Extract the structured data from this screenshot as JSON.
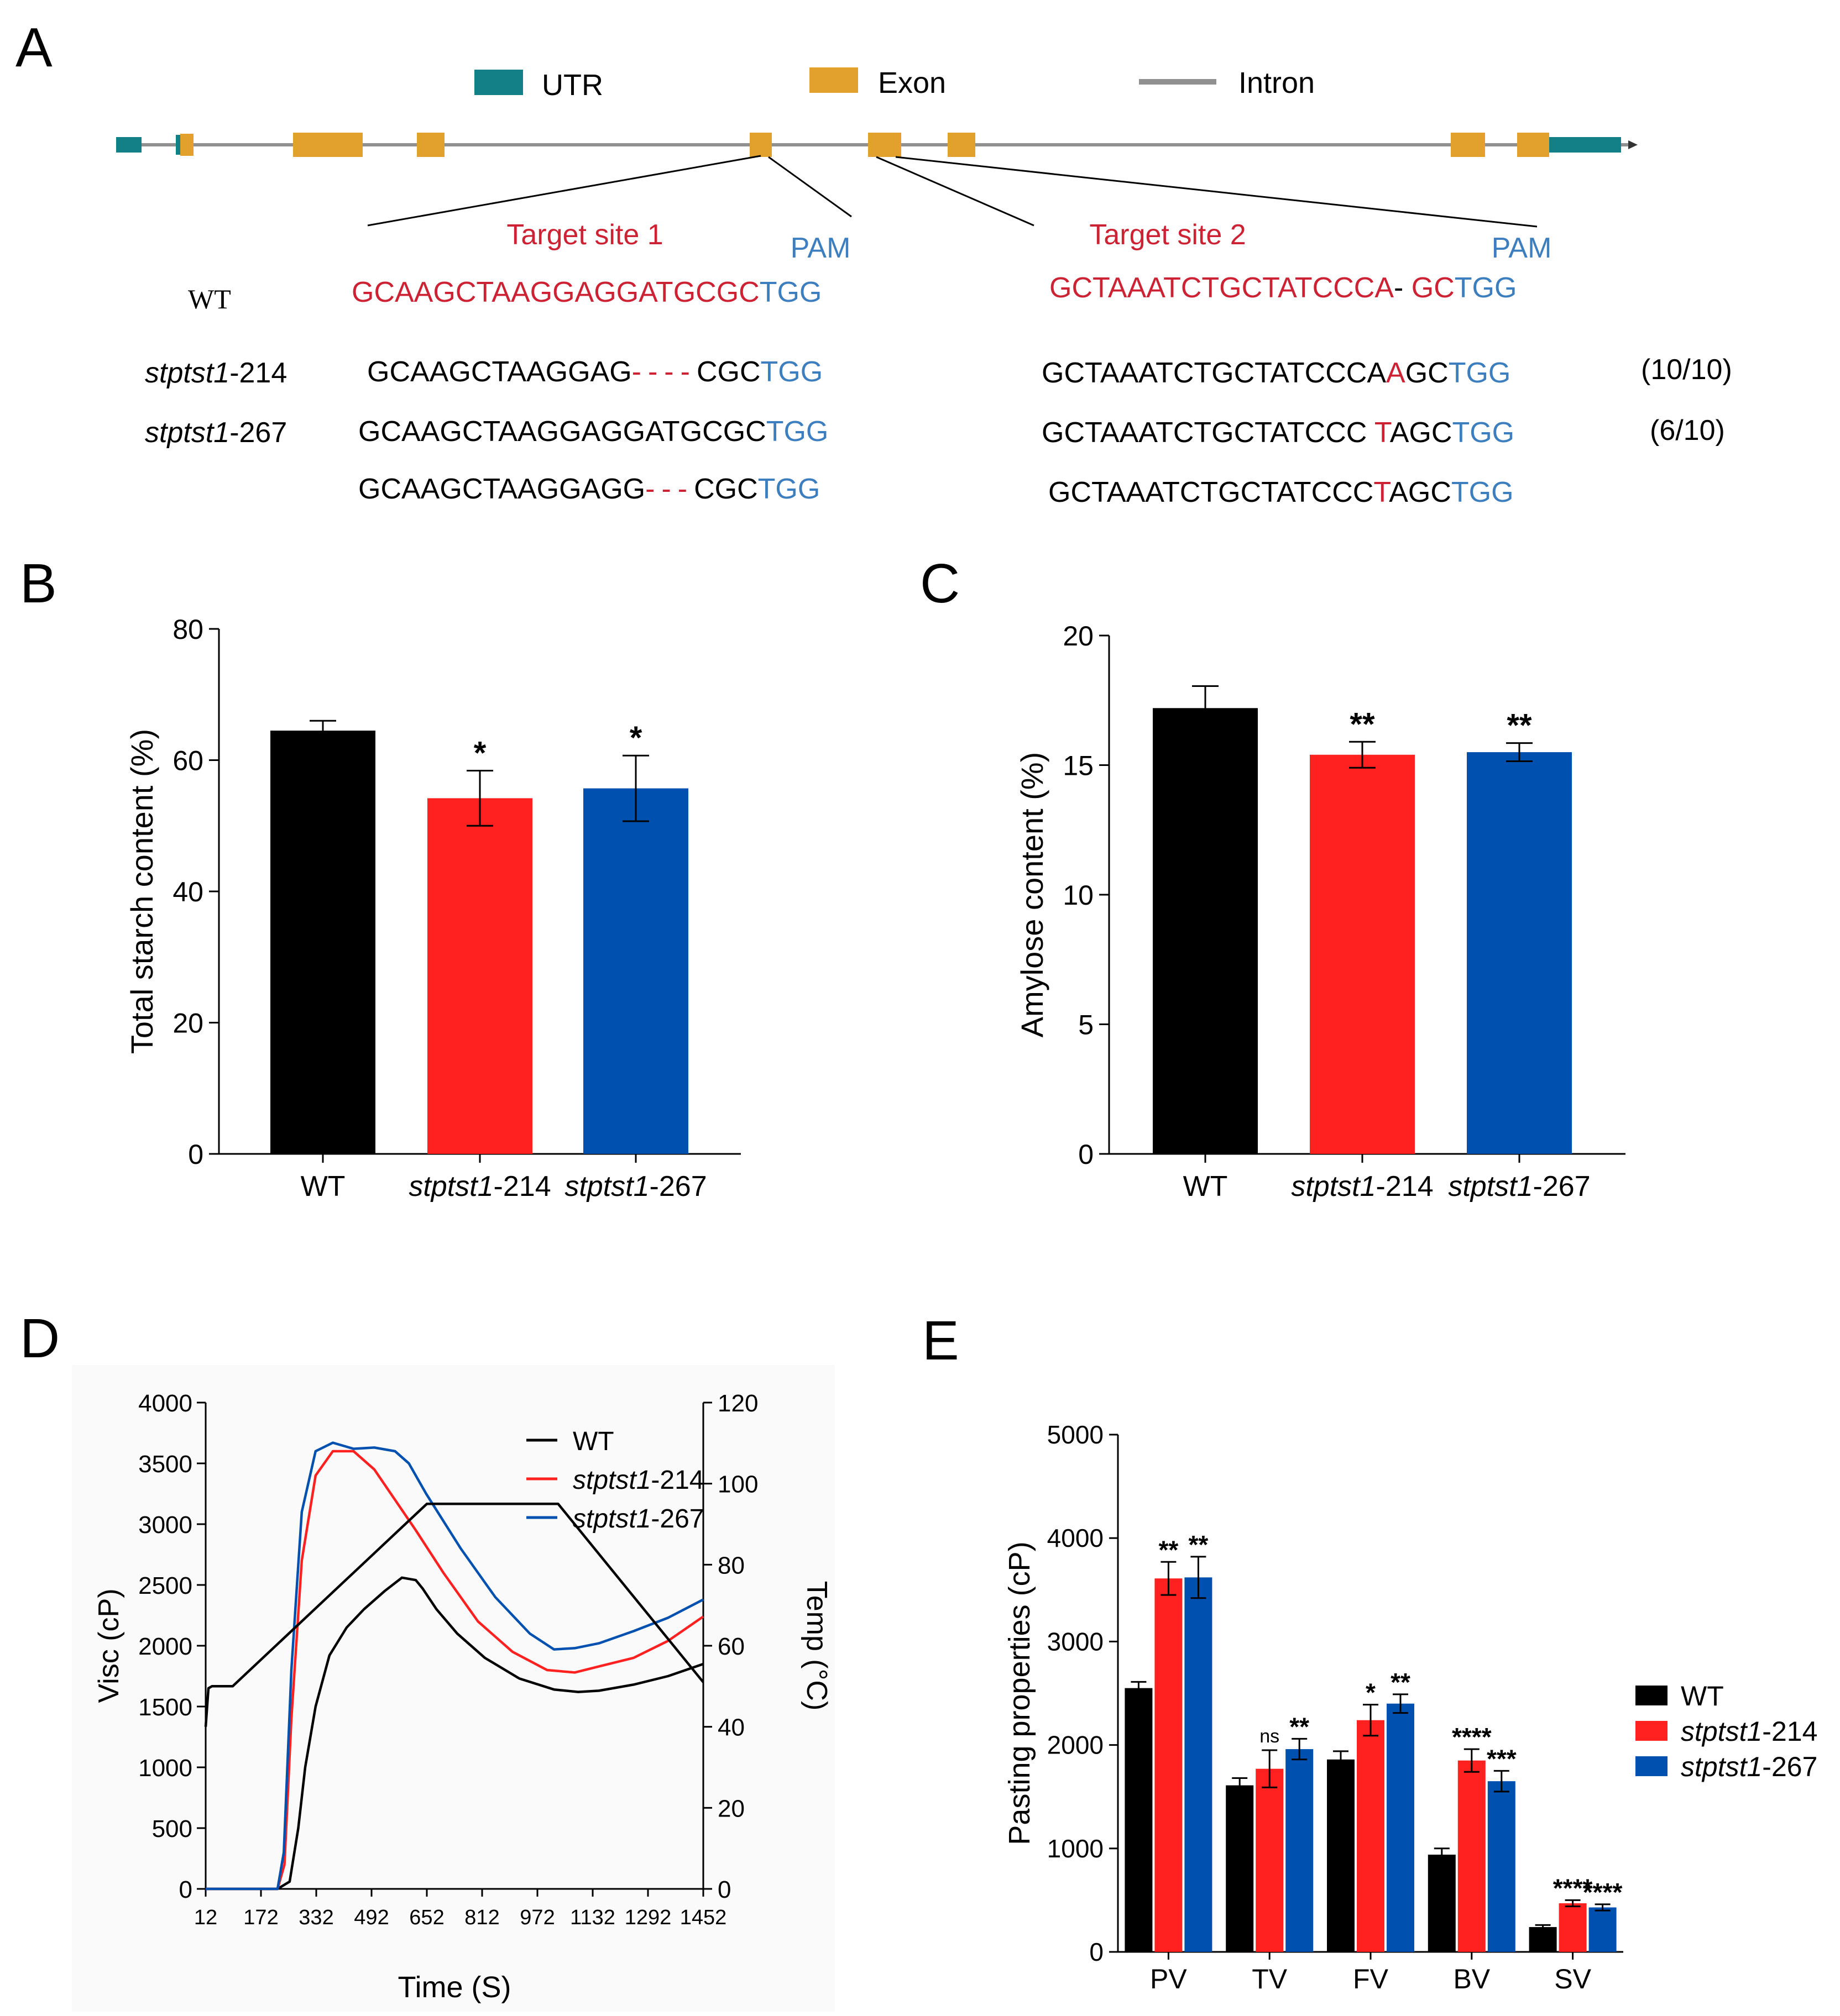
{
  "panels": {
    "A": "A",
    "B": "B",
    "C": "C",
    "D": "D",
    "E": "E"
  },
  "colors": {
    "wt": "#000000",
    "m214": "#ff2020",
    "m267": "#0050b0",
    "utr": "#137f86",
    "exon": "#e2a12d",
    "intron": "#909090",
    "target": "#cc2233",
    "pam": "#3d7ebf"
  },
  "gene_model": {
    "legend": {
      "utr": "UTR",
      "exon": "Exon",
      "intron": "Intron"
    },
    "target1_label": "Target site 1",
    "target2_label": "Target site 2",
    "pam_label": "PAM",
    "wt_label": "WT",
    "line_214": {
      "italic": "stptst1",
      "suffix": "-214"
    },
    "line_267": {
      "italic": "stptst1",
      "suffix": "-267"
    },
    "wt_seq1": {
      "target": "GCAAGCTAAGGAGGATGCGC",
      "pam": "TGG"
    },
    "wt_seq2": {
      "target": "GCTAAATCTGCTATCCCA",
      "gap": "- ",
      "mid": "GC",
      "pam": "TGG"
    },
    "m214_seq1": {
      "pre": "GCAAGCTAAGGAG",
      "del": "----",
      "post": "CGC",
      "pam": "TGG"
    },
    "m214_seq2": {
      "pre": "GCTAAATCTGCTATCCCA",
      "ins": "A",
      "post": "GC",
      "pam": "TGG"
    },
    "m214_ratio": "(10/10)",
    "m267a_seq1": {
      "pre": "GCAAGCTAAGGAGGATG",
      "post": "CGC",
      "pam": "TGG"
    },
    "m267a_seq2": {
      "pre": "GCTAAATCTGCTATCCC ",
      "ins": "T",
      "post": "AGC",
      "pam": "TGG"
    },
    "m267_ratio": "(6/10)",
    "m267b_seq1": {
      "pre": "GCAAGCTAAGGAGG",
      "del": "---",
      "post": "CGC",
      "pam": "TGG"
    },
    "m267b_seq2": {
      "pre": "GCTAAATCTGCTATCCC",
      "ins": "T",
      "post": "AGC",
      "pam": "TGG"
    }
  },
  "chart_data": [
    {
      "panel": "B",
      "type": "bar",
      "ylabel": "Total starch content (%)",
      "ylim": [
        0,
        80
      ],
      "yticks": [
        "0",
        "20",
        "40",
        "60",
        "80"
      ],
      "categories": [
        {
          "italic": "",
          "suffix": "WT"
        },
        {
          "italic": "stptst1",
          "suffix": "-214"
        },
        {
          "italic": "stptst1",
          "suffix": "-267"
        }
      ],
      "values": [
        64.5,
        54.2,
        55.7
      ],
      "errors": [
        1.5,
        4.2,
        5.0
      ],
      "significance": [
        "",
        "*",
        "*"
      ]
    },
    {
      "panel": "C",
      "type": "bar",
      "ylabel": "Amylose content (%)",
      "ylim": [
        0,
        20
      ],
      "yticks": [
        "0",
        "5",
        "10",
        "15",
        "20"
      ],
      "categories": [
        {
          "italic": "",
          "suffix": "WT"
        },
        {
          "italic": "stptst1",
          "suffix": "-214"
        },
        {
          "italic": "stptst1",
          "suffix": "-267"
        }
      ],
      "values": [
        17.2,
        15.4,
        15.5
      ],
      "errors": [
        0.85,
        0.5,
        0.35
      ],
      "significance": [
        "",
        "**",
        "**"
      ]
    },
    {
      "panel": "D",
      "type": "line",
      "xlabel": "Time (S)",
      "ylabel": "Visc (cP)",
      "y2label": "Temp (°C)",
      "xlim": [
        12,
        1452
      ],
      "ylim": [
        0,
        4000
      ],
      "y2lim": [
        0,
        120
      ],
      "xticks": [
        "12",
        "172",
        "332",
        "492",
        "652",
        "812",
        "972",
        "1132",
        "1292",
        "1452"
      ],
      "yticks": [
        "0",
        "500",
        "1000",
        "1500",
        "2000",
        "2500",
        "3000",
        "3500",
        "4000"
      ],
      "y2ticks": [
        "0",
        "20",
        "40",
        "60",
        "80",
        "100",
        "120"
      ],
      "legend": [
        {
          "italic": "",
          "suffix": "WT"
        },
        {
          "italic": "stptst1",
          "suffix": "-214"
        },
        {
          "italic": "stptst1",
          "suffix": "-267"
        }
      ],
      "series": [
        {
          "name": "WT",
          "x": [
            12,
            220,
            255,
            280,
            300,
            330,
            370,
            420,
            470,
            530,
            580,
            620,
            640,
            680,
            740,
            820,
            920,
            1020,
            1090,
            1150,
            1250,
            1350,
            1452
          ],
          "y": [
            0,
            0,
            60,
            500,
            1000,
            1500,
            1920,
            2150,
            2300,
            2450,
            2560,
            2540,
            2470,
            2300,
            2100,
            1900,
            1730,
            1640,
            1620,
            1630,
            1680,
            1750,
            1850
          ]
        },
        {
          "name": "stptst1-214",
          "x": [
            12,
            220,
            240,
            260,
            290,
            330,
            380,
            440,
            500,
            560,
            620,
            700,
            800,
            900,
            1000,
            1080,
            1150,
            1250,
            1350,
            1452
          ],
          "y": [
            0,
            0,
            200,
            1400,
            2700,
            3400,
            3600,
            3600,
            3450,
            3200,
            2950,
            2600,
            2200,
            1950,
            1800,
            1780,
            1830,
            1900,
            2040,
            2240
          ]
        },
        {
          "name": "stptst1-267",
          "x": [
            12,
            220,
            238,
            260,
            290,
            330,
            380,
            440,
            500,
            560,
            600,
            650,
            750,
            850,
            950,
            1020,
            1080,
            1150,
            1250,
            1350,
            1452
          ],
          "y": [
            0,
            0,
            300,
            1800,
            3100,
            3600,
            3670,
            3620,
            3630,
            3600,
            3500,
            3250,
            2800,
            2400,
            2100,
            1970,
            1980,
            2020,
            2120,
            2230,
            2380
          ]
        },
        {
          "name": "Temp",
          "axis": "y2",
          "x": [
            12,
            20,
            30,
            90,
            652,
            1032,
            1452
          ],
          "y": [
            40,
            49.5,
            50,
            50,
            95,
            95,
            51
          ]
        }
      ]
    },
    {
      "panel": "E",
      "type": "bar",
      "ylabel": "Pasting properties (cP)",
      "ylim": [
        0,
        5000
      ],
      "yticks": [
        "0",
        "1000",
        "2000",
        "3000",
        "4000",
        "5000"
      ],
      "categories": [
        "PV",
        "TV",
        "FV",
        "BV",
        "SV"
      ],
      "legend": [
        {
          "italic": "",
          "suffix": "WT"
        },
        {
          "italic": "stptst1",
          "suffix": "-214"
        },
        {
          "italic": "stptst1",
          "suffix": "-267"
        }
      ],
      "series": [
        {
          "name": "WT",
          "values": [
            2550,
            1610,
            1860,
            940,
            240
          ],
          "errors": [
            60,
            70,
            80,
            60,
            20
          ],
          "significance": [
            "",
            "",
            "",
            "",
            ""
          ]
        },
        {
          "name": "stptst1-214",
          "values": [
            3610,
            1770,
            2240,
            1850,
            470
          ],
          "errors": [
            160,
            180,
            150,
            110,
            30
          ],
          "significance": [
            "**",
            "ns",
            "*",
            "****",
            "****"
          ]
        },
        {
          "name": "stptst1-267",
          "values": [
            3620,
            1960,
            2400,
            1650,
            430
          ],
          "errors": [
            200,
            100,
            90,
            100,
            30
          ],
          "significance": [
            "**",
            "**",
            "**",
            "***",
            "****"
          ]
        }
      ]
    }
  ]
}
